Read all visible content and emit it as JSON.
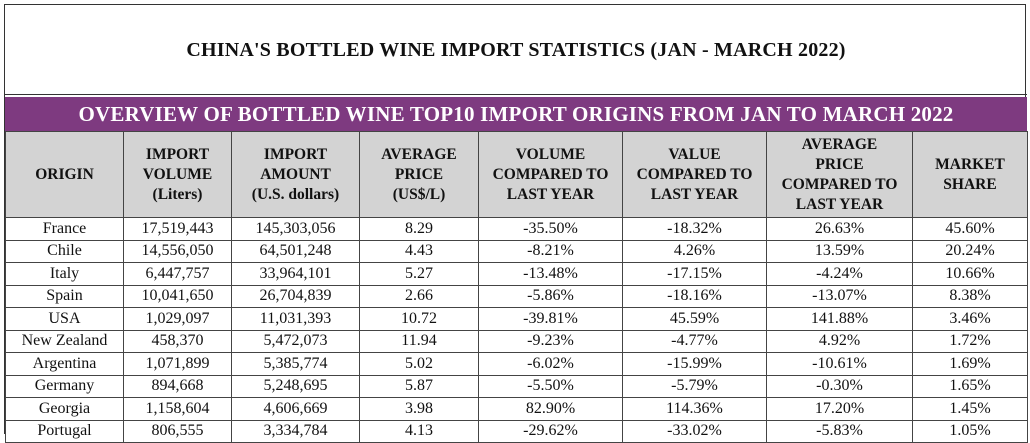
{
  "title": "CHINA'S BOTTLED WINE IMPORT STATISTICS  (JAN - MARCH 2022)",
  "banner": "OVERVIEW OF BOTTLED WINE TOP10 IMPORT ORIGINS FROM JAN TO MARCH 2022",
  "columns": [
    [
      "ORIGIN"
    ],
    [
      "IMPORT",
      "VOLUME",
      "(Liters)"
    ],
    [
      "IMPORT",
      "AMOUNT",
      "(U.S. dollars)"
    ],
    [
      "AVERAGE",
      "PRICE",
      "(US$/L)"
    ],
    [
      "VOLUME",
      "COMPARED TO",
      "LAST YEAR"
    ],
    [
      "VALUE",
      "COMPARED TO",
      "LAST YEAR"
    ],
    [
      "AVERAGE",
      "PRICE",
      "COMPARED TO",
      "LAST YEAR"
    ],
    [
      "MARKET",
      "SHARE"
    ]
  ],
  "rows": [
    [
      "France",
      "17,519,443",
      "145,303,056",
      "8.29",
      "-35.50%",
      "-18.32%",
      "26.63%",
      "45.60%"
    ],
    [
      "Chile",
      "14,556,050",
      "64,501,248",
      "4.43",
      "-8.21%",
      "4.26%",
      "13.59%",
      "20.24%"
    ],
    [
      "Italy",
      "6,447,757",
      "33,964,101",
      "5.27",
      "-13.48%",
      "-17.15%",
      "-4.24%",
      "10.66%"
    ],
    [
      "Spain",
      "10,041,650",
      "26,704,839",
      "2.66",
      "-5.86%",
      "-18.16%",
      "-13.07%",
      "8.38%"
    ],
    [
      "USA",
      "1,029,097",
      "11,031,393",
      "10.72",
      "-39.81%",
      "45.59%",
      "141.88%",
      "3.46%"
    ],
    [
      "New Zealand",
      "458,370",
      "5,472,073",
      "11.94",
      "-9.23%",
      "-4.77%",
      "4.92%",
      "1.72%"
    ],
    [
      "Argentina",
      "1,071,899",
      "5,385,774",
      "5.02",
      "-6.02%",
      "-15.99%",
      "-10.61%",
      "1.69%"
    ],
    [
      "Germany",
      "894,668",
      "5,248,695",
      "5.87",
      "-5.50%",
      "-5.79%",
      "-0.30%",
      "1.65%"
    ],
    [
      "Georgia",
      "1,158,604",
      "4,606,669",
      "3.98",
      "82.90%",
      "114.36%",
      "17.20%",
      "1.45%"
    ],
    [
      "Portugal",
      "806,555",
      "3,334,784",
      "4.13",
      "-29.62%",
      "-33.02%",
      "-5.83%",
      "1.05%"
    ]
  ]
}
